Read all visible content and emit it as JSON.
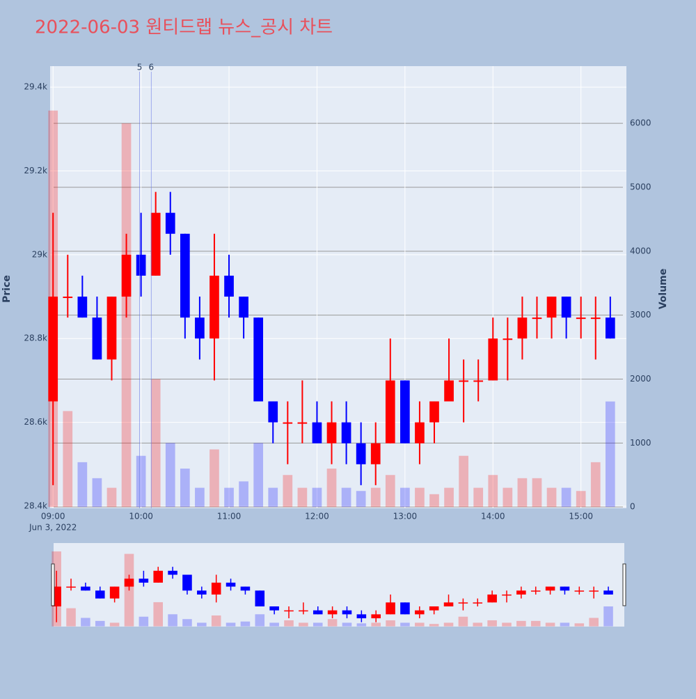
{
  "chart_data": {
    "type": "candlestick",
    "title": "2022-06-03 원티드랩 뉴스_공시 차트",
    "y_label": "Price",
    "y2_label": "Volume",
    "x": [
      "09:00",
      "09:10",
      "09:20",
      "09:30",
      "09:40",
      "09:50",
      "10:00",
      "10:10",
      "10:20",
      "10:30",
      "10:40",
      "10:50",
      "11:00",
      "11:10",
      "11:20",
      "11:30",
      "11:40",
      "11:50",
      "12:00",
      "12:10",
      "12:20",
      "12:30",
      "12:40",
      "12:50",
      "13:00",
      "13:10",
      "13:20",
      "13:30",
      "13:40",
      "13:50",
      "14:00",
      "14:10",
      "14:20",
      "14:30",
      "14:40",
      "14:50",
      "15:00",
      "15:10",
      "15:20"
    ],
    "open": [
      28650,
      28900,
      28900,
      28850,
      28750,
      28900,
      29000,
      28950,
      29100,
      29050,
      28850,
      28800,
      28950,
      28900,
      28850,
      28650,
      28600,
      28600,
      28600,
      28550,
      28600,
      28550,
      28500,
      28550,
      28700,
      28550,
      28600,
      28650,
      28700,
      28700,
      28700,
      28800,
      28800,
      28850,
      28850,
      28900,
      28850,
      28850,
      28850
    ],
    "high": [
      29100,
      29000,
      28950,
      28900,
      28900,
      29050,
      29100,
      29150,
      29150,
      29050,
      28900,
      29050,
      29000,
      28900,
      28850,
      28650,
      28650,
      28700,
      28650,
      28650,
      28650,
      28600,
      28600,
      28800,
      28700,
      28650,
      28650,
      28800,
      28750,
      28750,
      28850,
      28850,
      28900,
      28900,
      28900,
      28900,
      28900,
      28900,
      28900
    ],
    "low": [
      28450,
      28850,
      28850,
      28750,
      28700,
      28850,
      28900,
      28950,
      29000,
      28800,
      28750,
      28700,
      28850,
      28800,
      28650,
      28550,
      28500,
      28550,
      28550,
      28500,
      28500,
      28450,
      28450,
      28550,
      28550,
      28500,
      28550,
      28650,
      28600,
      28650,
      28700,
      28700,
      28750,
      28800,
      28800,
      28800,
      28800,
      28750,
      28800
    ],
    "close": [
      28900,
      28900,
      28850,
      28750,
      28900,
      29000,
      28950,
      29100,
      29050,
      28850,
      28800,
      28950,
      28900,
      28850,
      28650,
      28600,
      28600,
      28600,
      28550,
      28600,
      28550,
      28500,
      28550,
      28700,
      28550,
      28600,
      28650,
      28700,
      28700,
      28700,
      28800,
      28800,
      28850,
      28850,
      28900,
      28850,
      28850,
      28850,
      28800
    ],
    "volume": [
      6200,
      1500,
      700,
      450,
      300,
      6000,
      800,
      2000,
      1000,
      600,
      300,
      900,
      300,
      400,
      1000,
      300,
      500,
      300,
      300,
      600,
      300,
      250,
      300,
      500,
      300,
      300,
      200,
      300,
      800,
      300,
      500,
      300,
      450,
      450,
      300,
      300,
      250,
      700,
      1650
    ],
    "increasing_color": "#ff0000",
    "decreasing_color": "#0000ff",
    "xlim": [
      "08:58",
      "15:31"
    ],
    "xticks": [
      "09:00",
      "10:00",
      "11:00",
      "12:00",
      "13:00",
      "14:00",
      "15:00"
    ],
    "xtick_date": "Jun 3, 2022",
    "ylim": [
      28395,
      29450
    ],
    "yticks": [
      {
        "value": 28400,
        "label": "28.4k"
      },
      {
        "value": 28600,
        "label": "28.6k"
      },
      {
        "value": 28800,
        "label": "28.8k"
      },
      {
        "value": 29000,
        "label": "29k"
      },
      {
        "value": 29200,
        "label": "29.2k"
      },
      {
        "value": 29400,
        "label": "29.4k"
      }
    ],
    "y2lim": [
      -20,
      6895
    ],
    "y2ticks": [
      0,
      1000,
      2000,
      3000,
      4000,
      5000,
      6000
    ],
    "annotations": [
      {
        "x": "09:59",
        "text": "5"
      },
      {
        "x": "10:07",
        "text": "6"
      }
    ],
    "grid": true,
    "range_slider": true
  }
}
